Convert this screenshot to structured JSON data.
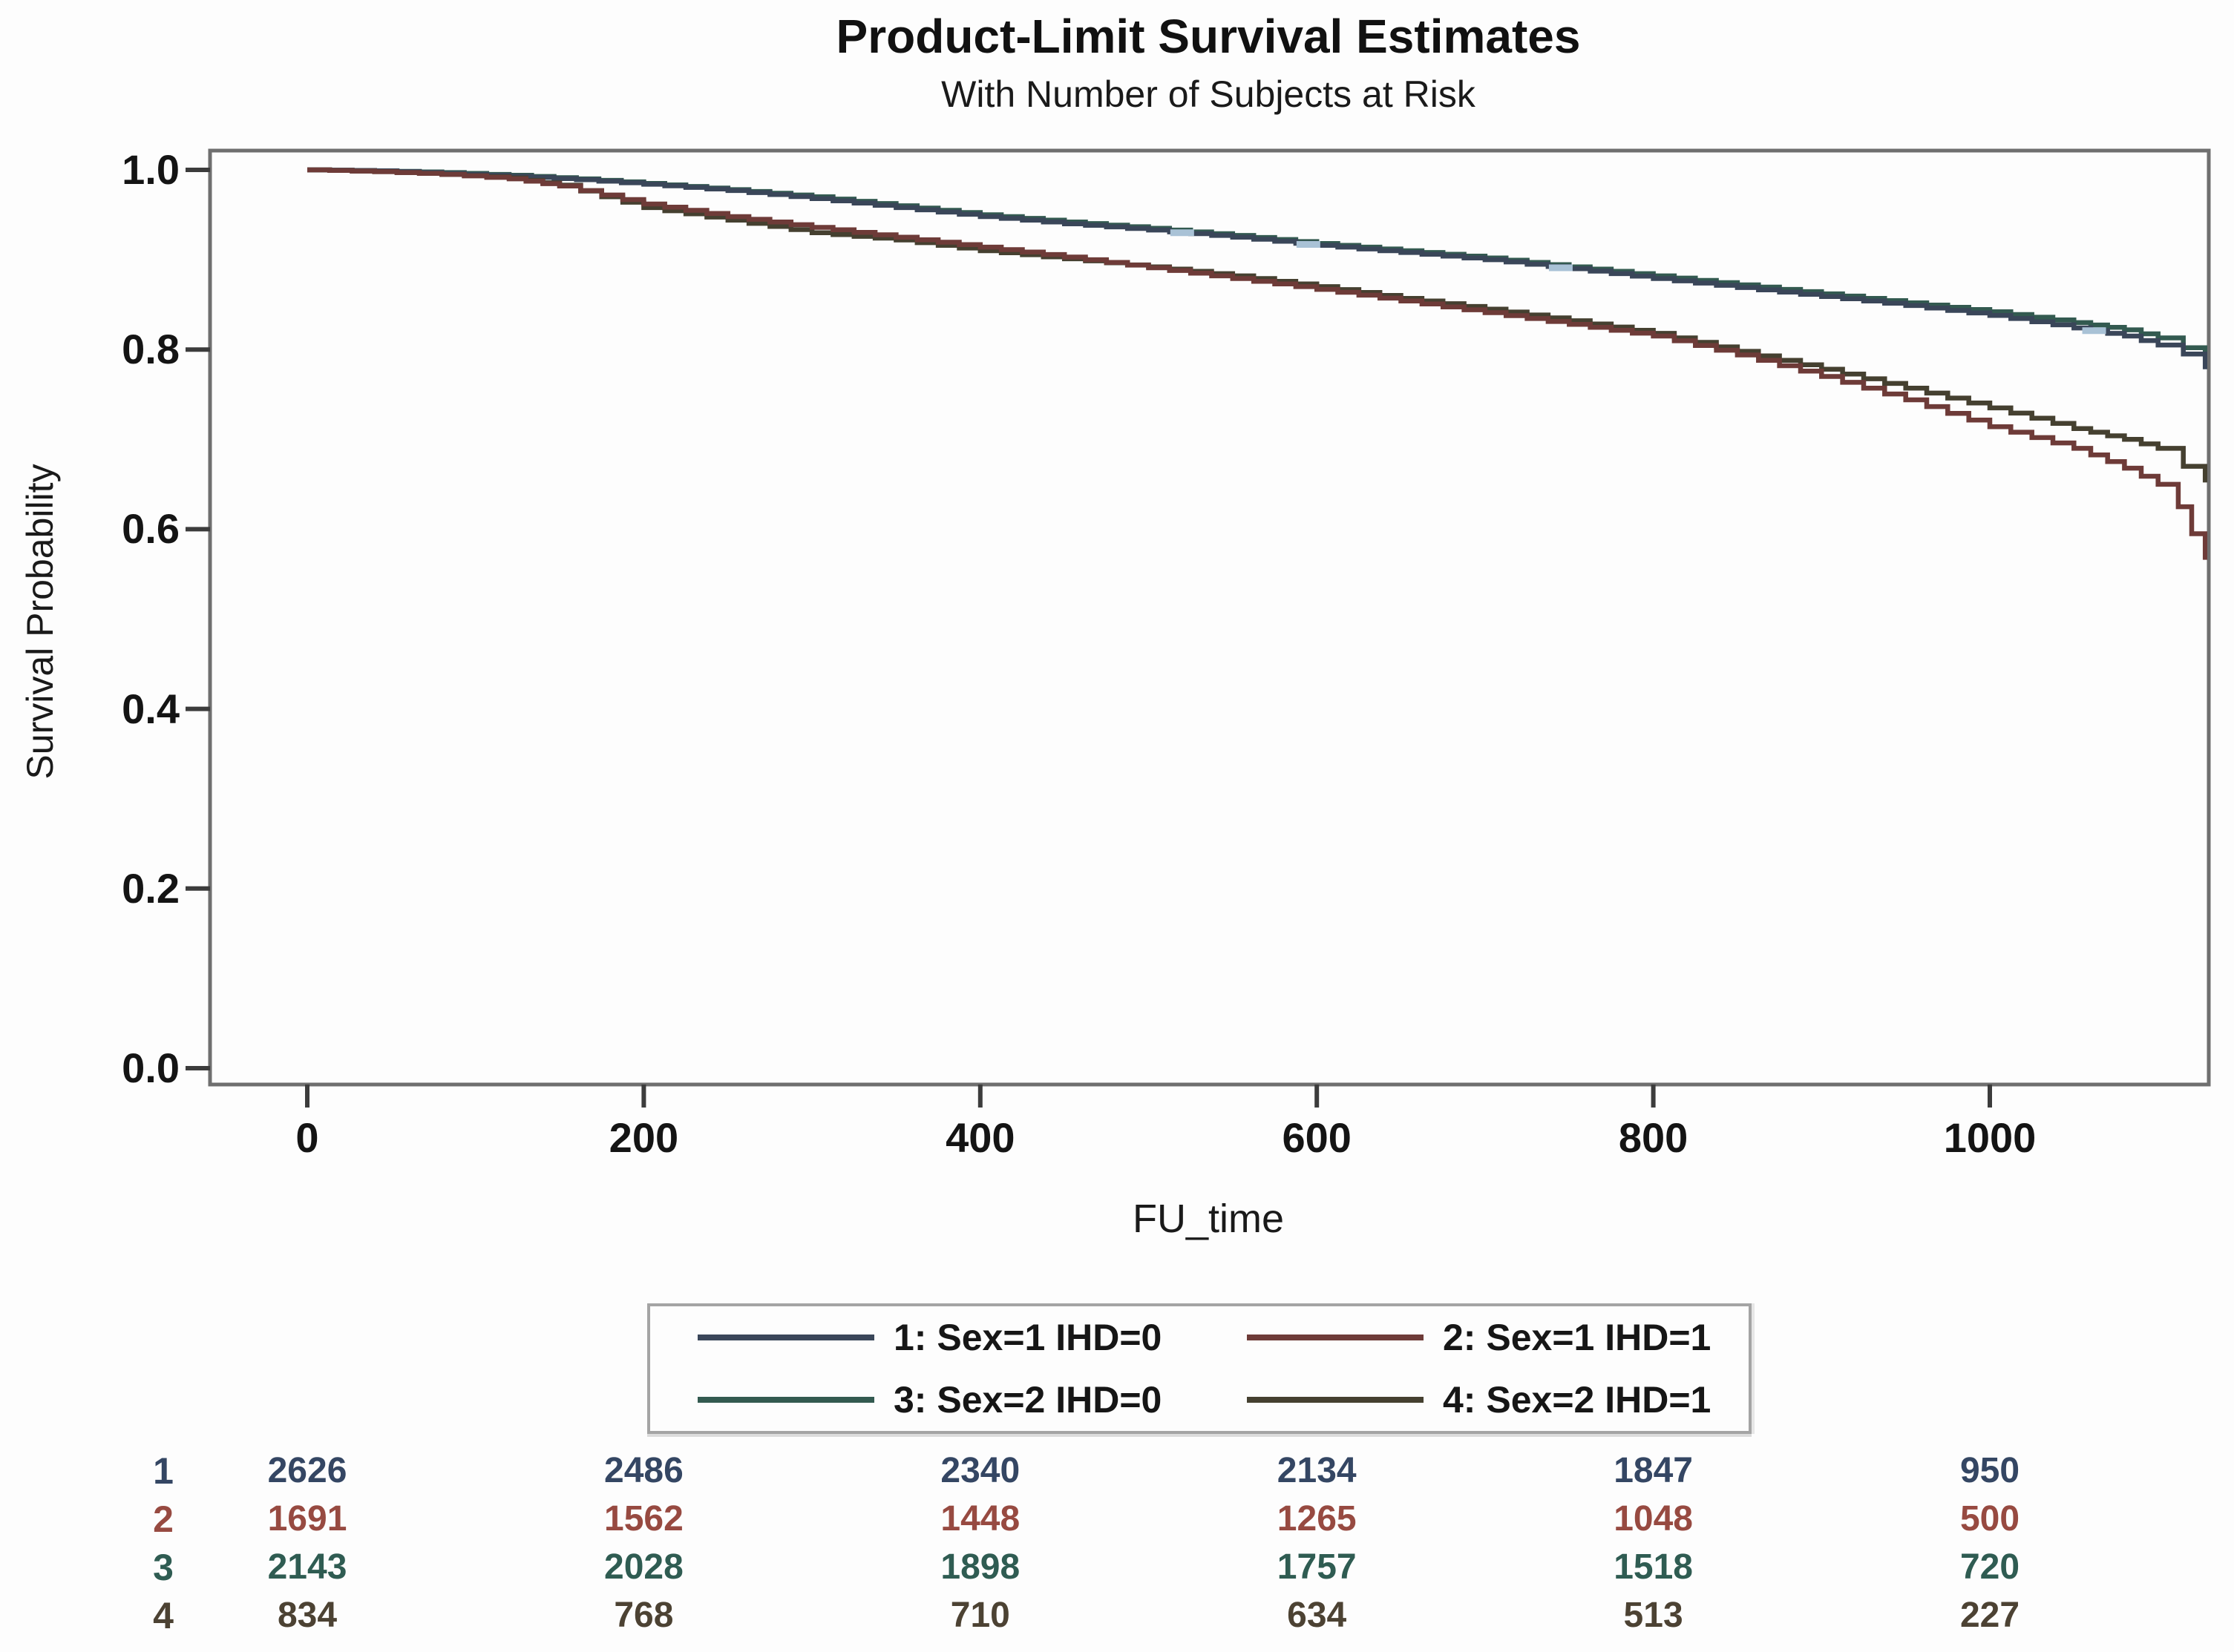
{
  "figure": {
    "title": "Product-Limit Survival Estimates",
    "subtitle": "With Number of Subjects at Risk",
    "x_axis_label": "FU_time",
    "y_axis_label": "Survival Probability"
  },
  "chart_data": {
    "type": "line",
    "subtype": "kaplan-meier-step",
    "title": "Product-Limit Survival Estimates",
    "subtitle": "With Number of Subjects at Risk",
    "xlabel": "FU_time",
    "ylabel": "Survival Probability",
    "xlim": [
      0,
      1150
    ],
    "ylim": [
      0.0,
      1.0
    ],
    "x_ticks": [
      0,
      200,
      400,
      600,
      800,
      1000
    ],
    "x_tick_labels": [
      "0",
      "200",
      "400",
      "600",
      "800",
      "1000"
    ],
    "y_ticks": [
      1.0,
      0.8,
      0.6,
      0.4,
      0.2,
      0.0
    ],
    "y_tick_labels": [
      "1.0",
      "0.8",
      "0.6",
      "0.4",
      "0.2",
      "0.0"
    ],
    "grid": false,
    "legend_position": "bottom-center-boxed",
    "series": [
      {
        "name": "1: Sex=1 IHD=0",
        "color": "#3a4659",
        "points": [
          [
            0,
            1.0
          ],
          [
            40,
            0.999
          ],
          [
            80,
            0.996
          ],
          [
            120,
            0.993
          ],
          [
            160,
            0.989
          ],
          [
            200,
            0.984
          ],
          [
            250,
            0.977
          ],
          [
            300,
            0.968
          ],
          [
            350,
            0.958
          ],
          [
            400,
            0.948
          ],
          [
            450,
            0.94
          ],
          [
            500,
            0.933
          ],
          [
            550,
            0.925
          ],
          [
            600,
            0.916
          ],
          [
            650,
            0.908
          ],
          [
            700,
            0.9
          ],
          [
            750,
            0.89
          ],
          [
            800,
            0.879
          ],
          [
            850,
            0.869
          ],
          [
            900,
            0.859
          ],
          [
            950,
            0.849
          ],
          [
            1000,
            0.838
          ],
          [
            1050,
            0.824
          ],
          [
            1080,
            0.815
          ],
          [
            1100,
            0.805
          ],
          [
            1115,
            0.795
          ],
          [
            1128,
            0.778
          ]
        ]
      },
      {
        "name": "2: Sex=1 IHD=1",
        "color": "#6e3b38",
        "points": [
          [
            0,
            1.0
          ],
          [
            40,
            0.998
          ],
          [
            80,
            0.995
          ],
          [
            120,
            0.99
          ],
          [
            150,
            0.982
          ],
          [
            175,
            0.972
          ],
          [
            200,
            0.962
          ],
          [
            250,
            0.948
          ],
          [
            300,
            0.936
          ],
          [
            350,
            0.925
          ],
          [
            400,
            0.914
          ],
          [
            450,
            0.903
          ],
          [
            500,
            0.891
          ],
          [
            550,
            0.879
          ],
          [
            600,
            0.867
          ],
          [
            650,
            0.854
          ],
          [
            700,
            0.841
          ],
          [
            750,
            0.828
          ],
          [
            800,
            0.815
          ],
          [
            850,
            0.794
          ],
          [
            900,
            0.77
          ],
          [
            950,
            0.744
          ],
          [
            1000,
            0.714
          ],
          [
            1050,
            0.69
          ],
          [
            1080,
            0.668
          ],
          [
            1100,
            0.65
          ],
          [
            1112,
            0.625
          ],
          [
            1120,
            0.595
          ],
          [
            1128,
            0.566
          ]
        ]
      },
      {
        "name": "3: Sex=2 IHD=0",
        "color": "#335a50",
        "points": [
          [
            0,
            1.0
          ],
          [
            40,
            0.999
          ],
          [
            80,
            0.997
          ],
          [
            120,
            0.994
          ],
          [
            160,
            0.99
          ],
          [
            200,
            0.985
          ],
          [
            250,
            0.978
          ],
          [
            300,
            0.97
          ],
          [
            350,
            0.96
          ],
          [
            400,
            0.95
          ],
          [
            450,
            0.942
          ],
          [
            500,
            0.935
          ],
          [
            550,
            0.927
          ],
          [
            600,
            0.918
          ],
          [
            650,
            0.91
          ],
          [
            700,
            0.902
          ],
          [
            750,
            0.892
          ],
          [
            800,
            0.882
          ],
          [
            850,
            0.872
          ],
          [
            900,
            0.862
          ],
          [
            950,
            0.852
          ],
          [
            1000,
            0.842
          ],
          [
            1050,
            0.83
          ],
          [
            1080,
            0.822
          ],
          [
            1100,
            0.813
          ],
          [
            1115,
            0.802
          ],
          [
            1128,
            0.79
          ]
        ]
      },
      {
        "name": "4: Sex=2 IHD=1",
        "color": "#454030",
        "points": [
          [
            0,
            1.0
          ],
          [
            40,
            0.998
          ],
          [
            80,
            0.995
          ],
          [
            120,
            0.991
          ],
          [
            150,
            0.983
          ],
          [
            175,
            0.97
          ],
          [
            200,
            0.958
          ],
          [
            250,
            0.944
          ],
          [
            300,
            0.93
          ],
          [
            350,
            0.922
          ],
          [
            400,
            0.91
          ],
          [
            450,
            0.901
          ],
          [
            500,
            0.892
          ],
          [
            550,
            0.882
          ],
          [
            600,
            0.87
          ],
          [
            650,
            0.857
          ],
          [
            700,
            0.845
          ],
          [
            750,
            0.832
          ],
          [
            800,
            0.818
          ],
          [
            850,
            0.798
          ],
          [
            900,
            0.778
          ],
          [
            950,
            0.757
          ],
          [
            1000,
            0.735
          ],
          [
            1050,
            0.712
          ],
          [
            1080,
            0.7
          ],
          [
            1100,
            0.69
          ],
          [
            1115,
            0.67
          ],
          [
            1128,
            0.652
          ]
        ]
      }
    ],
    "censor_marks": {
      "series": "1: Sex=1 IHD=0",
      "color": "#a9c2d6",
      "points": [
        [
          520,
          0.93
        ],
        [
          595,
          0.917
        ],
        [
          745,
          0.891
        ],
        [
          1062,
          0.821
        ]
      ]
    }
  },
  "legend": {
    "items": [
      {
        "label": "1: Sex=1 IHD=0",
        "color": "#3a4659"
      },
      {
        "label": "2: Sex=1 IHD=1",
        "color": "#6e3b38"
      },
      {
        "label": "3: Sex=2 IHD=0",
        "color": "#335a50"
      },
      {
        "label": "4: Sex=2 IHD=1",
        "color": "#454030"
      }
    ]
  },
  "at_risk_table": {
    "rows": [
      {
        "label": "1",
        "color": "#344663",
        "values": [
          "2626",
          "2486",
          "2340",
          "2134",
          "1847",
          "950"
        ]
      },
      {
        "label": "2",
        "color": "#974a41",
        "values": [
          "1691",
          "1562",
          "1448",
          "1265",
          "1048",
          "500"
        ]
      },
      {
        "label": "3",
        "color": "#2f5c52",
        "values": [
          "2143",
          "2028",
          "1898",
          "1757",
          "1518",
          "720"
        ]
      },
      {
        "label": "4",
        "color": "#4c4233",
        "values": [
          "834",
          "768",
          "710",
          "634",
          "513",
          "227"
        ]
      }
    ]
  },
  "colors": {
    "frame": "#6f6f6f",
    "tick": "#3c3c3c",
    "background": "#fdfdfd",
    "text": "#141414"
  }
}
